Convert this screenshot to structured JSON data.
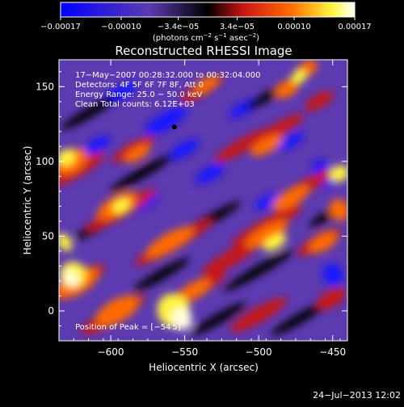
{
  "chart_data": {
    "type": "heatmap",
    "title": "Reconstructed RHESSI Image",
    "xlabel": "Heliocentric X (arcsec)",
    "ylabel": "Heliocentric Y (arcsec)",
    "xlim": [
      -635,
      -440
    ],
    "ylim": [
      -20,
      168
    ],
    "xticks": [
      -600,
      -550,
      -500,
      -450
    ],
    "yticks": [
      0,
      50,
      100,
      150
    ],
    "xtick_labels": [
      "−600",
      "−550",
      "−500",
      "−450"
    ],
    "ytick_labels": [
      "0",
      "50",
      "100",
      "150"
    ],
    "colorbar": {
      "range": [
        -0.00017,
        0.00017
      ],
      "ticks": [
        -0.00017,
        -0.0001,
        -3.4e-05,
        3.4e-05,
        0.0001,
        0.00017
      ],
      "tick_labels": [
        "−0.00017",
        "−0.00010",
        "−3.4e−05",
        "3.4e−05",
        "0.00010",
        "0.00017"
      ],
      "unit_main": "(photons cm",
      "unit_sup1": "−2",
      "unit_mid": " s",
      "unit_sup2": "−1",
      "unit_end": " asec",
      "unit_sup3": "−2",
      "unit_close": ")"
    },
    "annotations": [
      "17−May−2007 00:28:32.000 to 00:32:04.000",
      "Detectors: 4F 5F 6F 7F 8F, Att 0",
      "Energy Range: 25.0 − 50.0 keV",
      "Clean    Total counts: 6.12E+03"
    ],
    "peak_label": "Position of Peak = [−54",
    "peak_label_tail": "5]",
    "marker": {
      "x": -557,
      "y": 123
    },
    "stripe_angle_deg": 50,
    "colors": {
      "blue": "#1414ff",
      "purple": "#5c3ab0",
      "black": "#000000",
      "red": "#c81414",
      "orange": "#ff6a00",
      "yellow": "#fff43c",
      "white": "#ffffe0"
    }
  },
  "footer": {
    "timestamp": "24−Jul−2013 12:02"
  }
}
